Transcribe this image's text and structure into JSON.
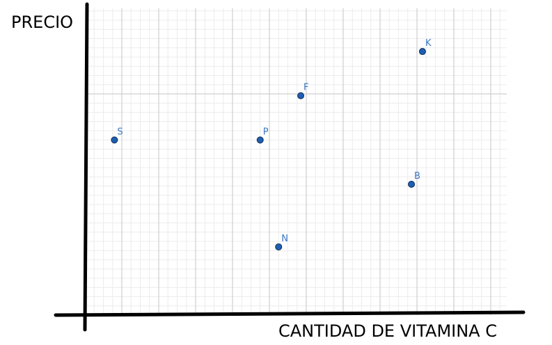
{
  "chart_data": {
    "type": "scatter",
    "ylabel": "PRECIO",
    "xlabel": "CANTIDAD DE VITAMINA C",
    "grid": true,
    "axis_ticks_labeled": false,
    "xlim": [
      0,
      22.6
    ],
    "ylim": [
      0,
      16.5
    ],
    "points": [
      {
        "label": "S",
        "x": 1.6,
        "y": 9.5
      },
      {
        "label": "P",
        "x": 9.5,
        "y": 9.5
      },
      {
        "label": "F",
        "x": 11.7,
        "y": 11.9
      },
      {
        "label": "K",
        "x": 18.3,
        "y": 14.3
      },
      {
        "label": "B",
        "x": 17.7,
        "y": 7.1
      },
      {
        "label": "N",
        "x": 10.5,
        "y": 3.7
      }
    ],
    "point_color": "#1f5fb0",
    "point_edge_color": "#0b2d5e",
    "label_color": "#3a78c4",
    "grid_minor_color": "#ececec",
    "grid_major_color": "#cfcfcf",
    "axis_color": "#000000"
  }
}
